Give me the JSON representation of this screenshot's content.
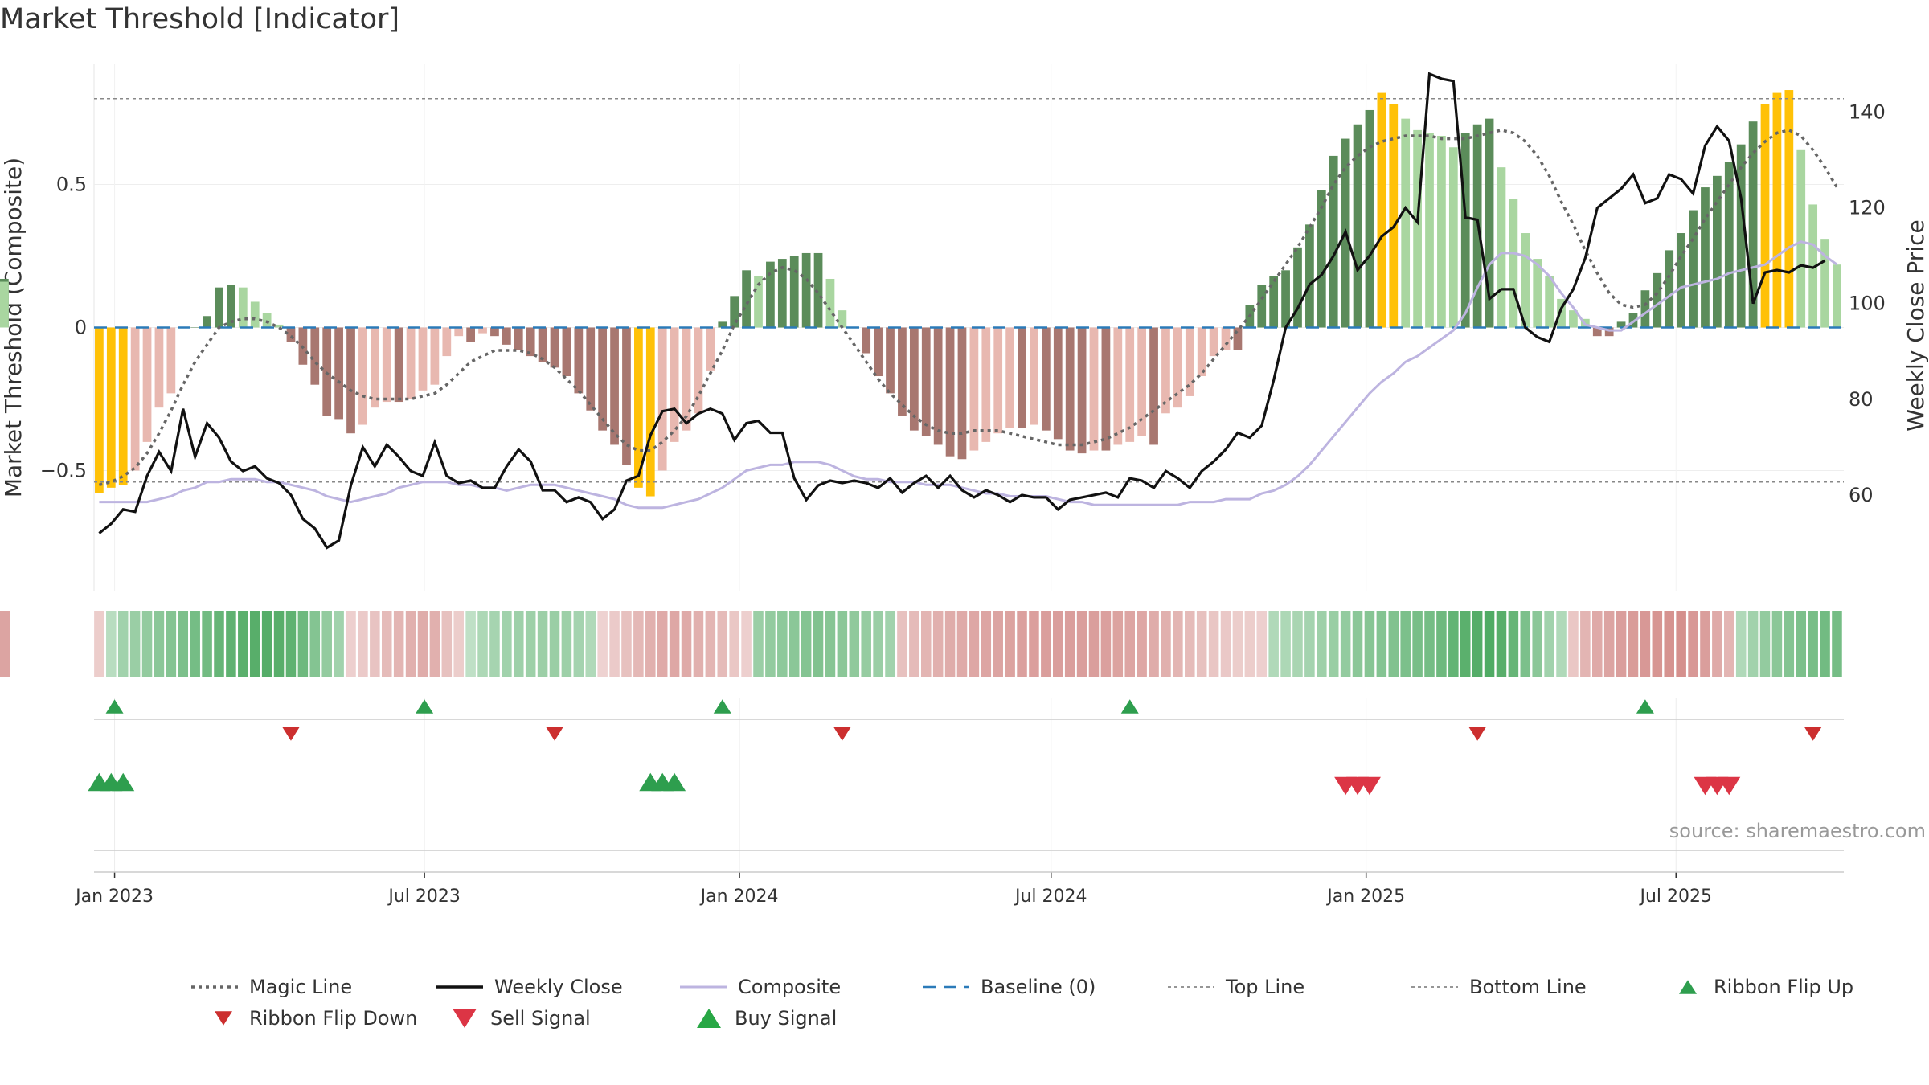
{
  "chart_data": {
    "type": "bar",
    "title": "Market Threshold [Indicator]",
    "ylabel": "Market Threshold (Composite)",
    "ylabel_right": "Weekly Close Price",
    "ylim": [
      -0.92,
      0.92
    ],
    "ylim_right": [
      40,
      150
    ],
    "yticks": [
      -0.5,
      0,
      0.5
    ],
    "yticks_right": [
      60,
      80,
      100,
      120,
      140
    ],
    "ytick_labels": [
      "−0.5",
      "0",
      "0.5"
    ],
    "ytick_right_labels": [
      "60",
      "80",
      "100",
      "120",
      "140"
    ],
    "x_dates": [
      "2022-12-23",
      "2022-12-30",
      "2023-01-06",
      "2023-01-13",
      "2023-01-20",
      "2023-01-27",
      "2023-02-03",
      "2023-02-10",
      "2023-02-17",
      "2023-02-24",
      "2023-03-03",
      "2023-03-10",
      "2023-03-17",
      "2023-03-24",
      "2023-03-31",
      "2023-04-07",
      "2023-04-14",
      "2023-04-21",
      "2023-04-28",
      "2023-05-05",
      "2023-05-12",
      "2023-05-19",
      "2023-05-26",
      "2023-06-02",
      "2023-06-09",
      "2023-06-16",
      "2023-06-23",
      "2023-06-30",
      "2023-07-07",
      "2023-07-14",
      "2023-07-21",
      "2023-07-28",
      "2023-08-04",
      "2023-08-11",
      "2023-08-18",
      "2023-08-25",
      "2023-09-01",
      "2023-09-08",
      "2023-09-15",
      "2023-09-22",
      "2023-09-29",
      "2023-10-06",
      "2023-10-13",
      "2023-10-20",
      "2023-10-27",
      "2023-11-03",
      "2023-11-10",
      "2023-11-17",
      "2023-11-24",
      "2023-12-01",
      "2023-12-08",
      "2023-12-15",
      "2023-12-22",
      "2023-12-29",
      "2024-01-05",
      "2024-01-12",
      "2024-01-19",
      "2024-01-26",
      "2024-02-02",
      "2024-02-09",
      "2024-02-16",
      "2024-02-23",
      "2024-03-01",
      "2024-03-08",
      "2024-03-15",
      "2024-03-22",
      "2024-03-29",
      "2024-04-05",
      "2024-04-12",
      "2024-04-19",
      "2024-04-26",
      "2024-05-03",
      "2024-05-10",
      "2024-05-17",
      "2024-05-24",
      "2024-05-31",
      "2024-06-07",
      "2024-06-14",
      "2024-06-21",
      "2024-06-28",
      "2024-07-05",
      "2024-07-12",
      "2024-07-19",
      "2024-07-26",
      "2024-08-02",
      "2024-08-09",
      "2024-08-16",
      "2024-08-23",
      "2024-08-30",
      "2024-09-06",
      "2024-09-13",
      "2024-09-20",
      "2024-09-27",
      "2024-10-04",
      "2024-10-11",
      "2024-10-18",
      "2024-10-25",
      "2024-11-01",
      "2024-11-08",
      "2024-11-15",
      "2024-11-22",
      "2024-11-29",
      "2024-12-06",
      "2024-12-13",
      "2024-12-20",
      "2024-12-27",
      "2025-01-03",
      "2025-01-10",
      "2025-01-17",
      "2025-01-24",
      "2025-01-31",
      "2025-02-07",
      "2025-02-14",
      "2025-02-21",
      "2025-02-28",
      "2025-03-07",
      "2025-03-14",
      "2025-03-21",
      "2025-03-28",
      "2025-04-04",
      "2025-04-11",
      "2025-04-18",
      "2025-04-25",
      "2025-05-02",
      "2025-05-09",
      "2025-05-16",
      "2025-05-23",
      "2025-05-30",
      "2025-06-06",
      "2025-06-13",
      "2025-06-20",
      "2025-06-27",
      "2025-07-04",
      "2025-07-11",
      "2025-07-18",
      "2025-07-25",
      "2025-08-01",
      "2025-08-08",
      "2025-08-15",
      "2025-08-22",
      "2025-08-29",
      "2025-09-05",
      "2025-09-12",
      "2025-09-19",
      "2025-09-26",
      "2025-10-03"
    ],
    "x_ticks": [
      {
        "date": "2023-01-01",
        "label": "Jan 2023"
      },
      {
        "date": "2023-07-01",
        "label": "Jul 2023"
      },
      {
        "date": "2024-01-01",
        "label": "Jan 2024"
      },
      {
        "date": "2024-07-01",
        "label": "Jul 2024"
      },
      {
        "date": "2025-01-01",
        "label": "Jan 2025"
      },
      {
        "date": "2025-07-01",
        "label": "Jul 2025"
      }
    ],
    "x_range": [
      "2022-12-20",
      "2025-10-07"
    ],
    "composite_bars": [
      -0.58,
      -0.56,
      -0.55,
      -0.5,
      -0.4,
      -0.28,
      -0.23,
      0,
      0,
      0.04,
      0.14,
      0.15,
      0.14,
      0.09,
      0.05,
      0.01,
      -0.05,
      -0.13,
      -0.2,
      -0.31,
      -0.32,
      -0.37,
      -0.34,
      -0.28,
      -0.26,
      -0.26,
      -0.25,
      -0.22,
      -0.2,
      -0.1,
      -0.03,
      -0.05,
      -0.02,
      -0.03,
      -0.06,
      -0.08,
      -0.1,
      -0.12,
      -0.14,
      -0.17,
      -0.23,
      -0.29,
      -0.36,
      -0.41,
      -0.48,
      -0.56,
      -0.59,
      -0.5,
      -0.4,
      -0.36,
      -0.3,
      -0.15,
      0.02,
      0.11,
      0.2,
      0.18,
      0.23,
      0.24,
      0.25,
      0.26,
      0.26,
      0.17,
      0.06,
      0,
      -0.09,
      -0.17,
      -0.23,
      -0.31,
      -0.36,
      -0.38,
      -0.41,
      -0.45,
      -0.46,
      -0.43,
      -0.4,
      -0.37,
      -0.35,
      -0.35,
      -0.34,
      -0.36,
      -0.39,
      -0.43,
      -0.44,
      -0.43,
      -0.43,
      -0.41,
      -0.4,
      -0.38,
      -0.41,
      -0.3,
      -0.28,
      -0.24,
      -0.17,
      -0.1,
      -0.08,
      -0.08,
      0.08,
      0.15,
      0.18,
      0.2,
      0.28,
      0.36,
      0.48,
      0.6,
      0.66,
      0.71,
      0.76,
      0.82,
      0.78,
      0.73,
      0.69,
      0.68,
      0.67,
      0.63,
      0.68,
      0.71,
      0.73,
      0.56,
      0.45,
      0.33,
      0.24,
      0.18,
      0.1,
      0.06,
      0.03,
      -0.03,
      -0.03,
      0.02,
      0.05,
      0.13,
      0.19,
      0.27,
      0.33,
      0.41,
      0.49,
      0.53,
      0.58,
      0.64,
      0.72,
      0.78,
      0.82,
      0.83,
      0.62,
      0.43,
      0.31,
      0.22,
      0.16,
      0.17,
      0.16
    ],
    "weekly_close": [
      52,
      54,
      57,
      56.5,
      64,
      69,
      65,
      78,
      68,
      75,
      72,
      67,
      65,
      66,
      63.5,
      62.5,
      60,
      55,
      53,
      49,
      50.5,
      62,
      70,
      66,
      70.5,
      68,
      65,
      64,
      71,
      64,
      62.5,
      63,
      61.5,
      61.5,
      66,
      69.5,
      67,
      61,
      61,
      58.5,
      59.5,
      58.5,
      55,
      57,
      63,
      64,
      72.5,
      77.5,
      78,
      75,
      77,
      78,
      77,
      71.5,
      75,
      75.5,
      73,
      73,
      63.5,
      59,
      62,
      63,
      62.5,
      63,
      62.5,
      61.5,
      63.5,
      60.5,
      62.5,
      64,
      61.5,
      64,
      61,
      59.5,
      61,
      60,
      58.5,
      60,
      59.5,
      59.5,
      57,
      59,
      59.5,
      60,
      60.5,
      59.5,
      63.5,
      63,
      61.5,
      65,
      63.5,
      61.5,
      65,
      67,
      69.5,
      73,
      72,
      74.5,
      84,
      95,
      99,
      104,
      106,
      110,
      115,
      107,
      110,
      114,
      116,
      120,
      117,
      148,
      147,
      146.5,
      118,
      117.5,
      101,
      103,
      103,
      95,
      93,
      92,
      99,
      103,
      109.5,
      120,
      122,
      124,
      127,
      121,
      122,
      127,
      126,
      123,
      133,
      137,
      134,
      122,
      100,
      106.5,
      107,
      106.5,
      108,
      107.5,
      109
    ],
    "composite_line": [
      -0.61,
      -0.61,
      -0.61,
      -0.61,
      -0.61,
      -0.6,
      -0.59,
      -0.57,
      -0.56,
      -0.54,
      -0.54,
      -0.53,
      -0.53,
      -0.53,
      -0.54,
      -0.54,
      -0.55,
      -0.56,
      -0.57,
      -0.59,
      -0.6,
      -0.61,
      -0.6,
      -0.59,
      -0.58,
      -0.56,
      -0.55,
      -0.54,
      -0.54,
      -0.54,
      -0.55,
      -0.55,
      -0.56,
      -0.56,
      -0.57,
      -0.56,
      -0.55,
      -0.55,
      -0.55,
      -0.56,
      -0.57,
      -0.58,
      -0.59,
      -0.6,
      -0.62,
      -0.63,
      -0.63,
      -0.63,
      -0.62,
      -0.61,
      -0.6,
      -0.58,
      -0.56,
      -0.53,
      -0.5,
      -0.49,
      -0.48,
      -0.48,
      -0.47,
      -0.47,
      -0.47,
      -0.48,
      -0.5,
      -0.52,
      -0.53,
      -0.53,
      -0.54,
      -0.54,
      -0.54,
      -0.55,
      -0.55,
      -0.55,
      -0.56,
      -0.57,
      -0.58,
      -0.58,
      -0.59,
      -0.59,
      -0.59,
      -0.59,
      -0.6,
      -0.61,
      -0.61,
      -0.62,
      -0.62,
      -0.62,
      -0.62,
      -0.62,
      -0.62,
      -0.62,
      -0.62,
      -0.61,
      -0.61,
      -0.61,
      -0.6,
      -0.6,
      -0.6,
      -0.58,
      -0.57,
      -0.55,
      -0.52,
      -0.48,
      -0.43,
      -0.38,
      -0.33,
      -0.28,
      -0.23,
      -0.19,
      -0.16,
      -0.12,
      -0.1,
      -0.07,
      -0.04,
      -0.01,
      0.05,
      0.14,
      0.22,
      0.26,
      0.26,
      0.25,
      0.22,
      0.18,
      0.12,
      0.07,
      0.01,
      0,
      -0.01,
      -0.01,
      0.02,
      0.05,
      0.08,
      0.11,
      0.14,
      0.15,
      0.16,
      0.17,
      0.19,
      0.2,
      0.21,
      0.22,
      0.25,
      0.28,
      0.3,
      0.29,
      0.25,
      0.22,
      0.2,
      0.19,
      0.18,
      0.17
    ],
    "magic_line": [
      -0.55,
      -0.54,
      -0.52,
      -0.49,
      -0.44,
      -0.37,
      -0.29,
      -0.2,
      -0.12,
      -0.06,
      0,
      0.02,
      0.03,
      0.03,
      0.02,
      0,
      -0.03,
      -0.07,
      -0.12,
      -0.16,
      -0.19,
      -0.22,
      -0.24,
      -0.25,
      -0.25,
      -0.25,
      -0.25,
      -0.24,
      -0.23,
      -0.2,
      -0.16,
      -0.12,
      -0.1,
      -0.08,
      -0.08,
      -0.08,
      -0.09,
      -0.11,
      -0.14,
      -0.18,
      -0.22,
      -0.27,
      -0.32,
      -0.37,
      -0.41,
      -0.43,
      -0.43,
      -0.4,
      -0.36,
      -0.31,
      -0.24,
      -0.16,
      -0.08,
      0.01,
      0.08,
      0.15,
      0.19,
      0.21,
      0.2,
      0.17,
      0.12,
      0.06,
      0,
      -0.06,
      -0.12,
      -0.18,
      -0.23,
      -0.27,
      -0.31,
      -0.34,
      -0.36,
      -0.37,
      -0.37,
      -0.36,
      -0.36,
      -0.36,
      -0.37,
      -0.38,
      -0.39,
      -0.4,
      -0.41,
      -0.41,
      -0.41,
      -0.4,
      -0.39,
      -0.37,
      -0.35,
      -0.32,
      -0.29,
      -0.26,
      -0.23,
      -0.2,
      -0.16,
      -0.11,
      -0.06,
      -0.01,
      0.04,
      0.1,
      0.16,
      0.22,
      0.28,
      0.35,
      0.42,
      0.5,
      0.56,
      0.6,
      0.63,
      0.65,
      0.66,
      0.67,
      0.67,
      0.67,
      0.66,
      0.66,
      0.66,
      0.67,
      0.68,
      0.69,
      0.68,
      0.65,
      0.6,
      0.53,
      0.44,
      0.36,
      0.27,
      0.19,
      0.12,
      0.08,
      0.07,
      0.08,
      0.12,
      0.18,
      0.25,
      0.31,
      0.38,
      0.44,
      0.5,
      0.56,
      0.61,
      0.65,
      0.68,
      0.69,
      0.67,
      0.62,
      0.56,
      0.49,
      0.43,
      0.38,
      0.34
    ],
    "top_line": 0.8,
    "bottom_line": -0.54,
    "baseline": 0,
    "ribbon_scores": [
      -0.1,
      0.15,
      0.3,
      0.35,
      0.4,
      0.45,
      0.5,
      0.55,
      0.6,
      0.62,
      0.7,
      0.75,
      0.78,
      0.8,
      0.82,
      0.8,
      0.75,
      0.65,
      0.5,
      0.4,
      0.3,
      -0.08,
      -0.12,
      -0.18,
      -0.25,
      -0.3,
      -0.35,
      -0.38,
      -0.35,
      -0.2,
      -0.1,
      0.1,
      0.22,
      0.27,
      0.3,
      0.32,
      0.33,
      0.34,
      0.35,
      0.33,
      0.28,
      0.2,
      -0.05,
      -0.12,
      -0.2,
      -0.28,
      -0.35,
      -0.4,
      -0.42,
      -0.4,
      -0.35,
      -0.3,
      -0.25,
      -0.15,
      -0.08,
      0.35,
      0.4,
      0.43,
      0.45,
      0.5,
      0.52,
      0.48,
      0.45,
      0.42,
      0.38,
      0.35,
      0.3,
      -0.2,
      -0.25,
      -0.3,
      -0.35,
      -0.38,
      -0.4,
      -0.42,
      -0.44,
      -0.45,
      -0.46,
      -0.48,
      -0.49,
      -0.5,
      -0.5,
      -0.5,
      -0.5,
      -0.5,
      -0.48,
      -0.46,
      -0.44,
      -0.42,
      -0.38,
      -0.35,
      -0.3,
      -0.25,
      -0.2,
      -0.16,
      -0.14,
      -0.1,
      -0.1,
      -0.08,
      0.2,
      0.22,
      0.25,
      0.28,
      0.32,
      0.36,
      0.4,
      0.45,
      0.48,
      0.5,
      0.52,
      0.55,
      0.58,
      0.6,
      0.65,
      0.72,
      0.78,
      0.82,
      0.85,
      0.8,
      0.7,
      0.55,
      0.45,
      0.3,
      0.2,
      -0.15,
      -0.3,
      -0.4,
      -0.45,
      -0.5,
      -0.52,
      -0.55,
      -0.58,
      -0.6,
      -0.62,
      -0.55,
      -0.5,
      -0.4,
      -0.3,
      0.2,
      0.3,
      0.4,
      0.45,
      0.5,
      0.55,
      0.58,
      0.62,
      0.6,
      0.55,
      0.5,
      0.45,
      0.42,
      0.35,
      0.25,
      -0.25,
      -0.35,
      -0.4,
      -0.45,
      -0.45
    ],
    "ribbon_flip_up": [
      "2023-01-01",
      "2023-07-01",
      "2023-12-22",
      "2024-08-16",
      "2025-06-13"
    ],
    "ribbon_flip_down": [
      "2023-04-14",
      "2023-09-15",
      "2024-03-01",
      "2025-03-07",
      "2025-09-19"
    ],
    "buy_signal": [
      "2022-12-23",
      "2022-12-30",
      "2023-01-06",
      "2023-11-10",
      "2023-11-17",
      "2023-11-24"
    ],
    "sell_signal": [
      "2024-12-20",
      "2024-12-27",
      "2025-01-03",
      "2025-07-18",
      "2025-07-25",
      "2025-08-01"
    ],
    "legend": [
      {
        "label": "Magic Line",
        "kind": "dotted",
        "color": "#666666"
      },
      {
        "label": "Weekly Close",
        "kind": "solid",
        "color": "#111111"
      },
      {
        "label": "Composite",
        "kind": "solid-thin",
        "color": "#bdb4e0"
      },
      {
        "label": "Baseline (0)",
        "kind": "dashed",
        "color": "#2b7bb9"
      },
      {
        "label": "Top Line",
        "kind": "dotted-thin",
        "color": "#888888"
      },
      {
        "label": "Bottom Line",
        "kind": "dotted-thin",
        "color": "#888888"
      },
      {
        "label": "Ribbon Flip Up",
        "kind": "tri-up-small",
        "color": "#2e9e4e"
      },
      {
        "label": "Ribbon Flip Down",
        "kind": "tri-down-small",
        "color": "#cc2f2f"
      },
      {
        "label": "Sell Signal",
        "kind": "tri-down",
        "color": "#dc3545"
      },
      {
        "label": "Buy Signal",
        "kind": "tri-up",
        "color": "#28a745"
      }
    ],
    "legend_placement": "bottom",
    "grid": true,
    "source_note": "source: sharemaestro.com"
  },
  "colors": {
    "bull_dark": "#5b8c5a",
    "bull_light": "#a9d6a0",
    "bear_dark": "#a87770",
    "bear_light": "#e8b8b0",
    "extreme": "#ffc107",
    "close": "#111111",
    "composite": "#bdb4e0",
    "magic": "#666666",
    "baseline": "#2b7bb9"
  }
}
